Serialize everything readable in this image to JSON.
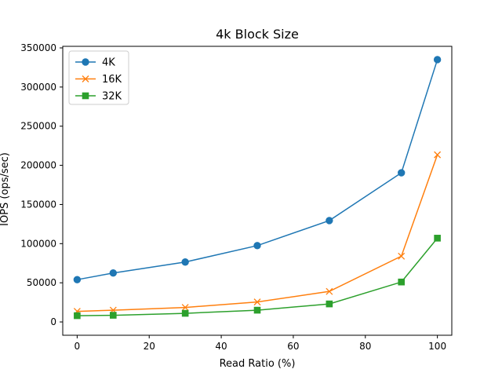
{
  "chart_data": {
    "type": "line",
    "title": "4k Block Size",
    "xlabel": "Read Ratio (%)",
    "ylabel": "IOPS (ops/sec)",
    "xlim": [
      -4,
      104
    ],
    "ylim": [
      -17000,
      352000
    ],
    "x_ticks": [
      0,
      20,
      40,
      60,
      80,
      100
    ],
    "y_ticks": [
      0,
      50000,
      100000,
      150000,
      200000,
      250000,
      300000,
      350000
    ],
    "grid": false,
    "legend_position": "top-left",
    "x": [
      0,
      10,
      30,
      50,
      70,
      90,
      100
    ],
    "series": [
      {
        "name": "4K",
        "color": "#1f77b4",
        "marker": "circle",
        "values": [
          54000,
          62500,
          76500,
          97500,
          129500,
          190500,
          335000
        ]
      },
      {
        "name": "16K",
        "color": "#ff7f0e",
        "marker": "x",
        "values": [
          13500,
          15000,
          18500,
          25500,
          39000,
          84000,
          213500
        ]
      },
      {
        "name": "32K",
        "color": "#2ca02c",
        "marker": "square",
        "values": [
          8000,
          8500,
          11000,
          15000,
          23000,
          51000,
          107000
        ]
      }
    ]
  }
}
